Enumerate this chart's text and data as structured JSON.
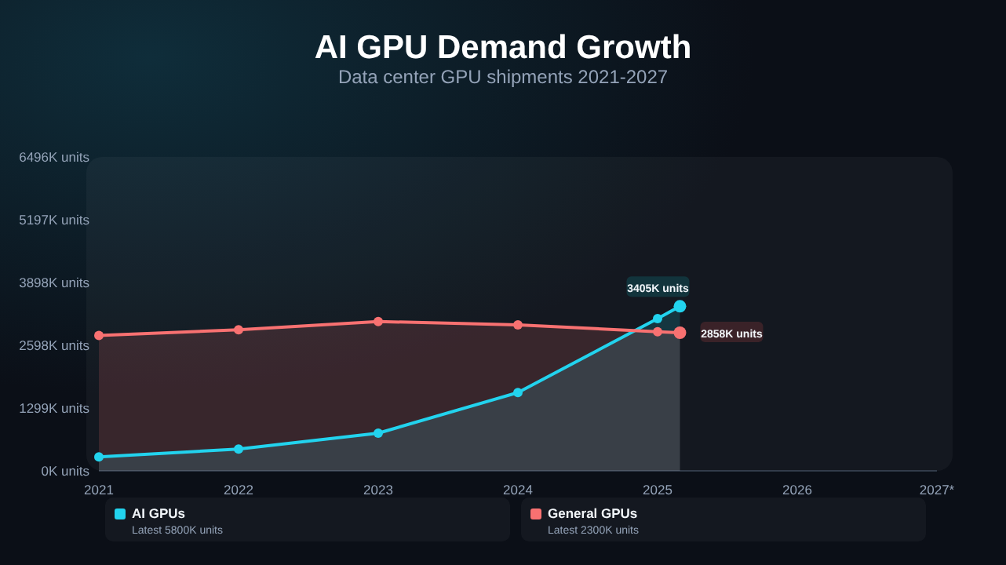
{
  "chart_data": {
    "type": "area",
    "title": "AI GPU Demand Growth",
    "subtitle": "Data center GPU shipments 2021-2027",
    "x": [
      2021,
      2022,
      2023,
      2024,
      2025,
      2025.16
    ],
    "xlim": [
      2021,
      2027
    ],
    "xticks": [
      2021,
      2022,
      2023,
      2024,
      2025,
      2026,
      {
        "value": 2027,
        "label": "2027*"
      }
    ],
    "ylim": [
      0,
      6496
    ],
    "yticks": [
      {
        "value": 0,
        "label": "0K units"
      },
      {
        "value": 1299,
        "label": "1299K units"
      },
      {
        "value": 2598,
        "label": "2598K units"
      },
      {
        "value": 3898,
        "label": "3898K units"
      },
      {
        "value": 5197,
        "label": "5197K units"
      },
      {
        "value": 6496,
        "label": "6496K units"
      }
    ],
    "series": [
      {
        "name": "AI GPUs",
        "color": "#22d3ee",
        "values": [
          290,
          450,
          780,
          1620,
          3150,
          3405
        ],
        "value_labels": [
          null,
          null,
          null,
          null,
          null,
          "3405K units"
        ]
      },
      {
        "name": "General GPUs",
        "color": "#f87171",
        "values": [
          2800,
          2920,
          3090,
          3020,
          2880,
          2858
        ],
        "value_labels": [
          null,
          null,
          null,
          null,
          null,
          "2858K units"
        ]
      }
    ],
    "annotations": [
      "Latest 5800K units",
      "Latest 2300K units"
    ],
    "marker": "circle",
    "legend": "bottom",
    "grid": false
  }
}
